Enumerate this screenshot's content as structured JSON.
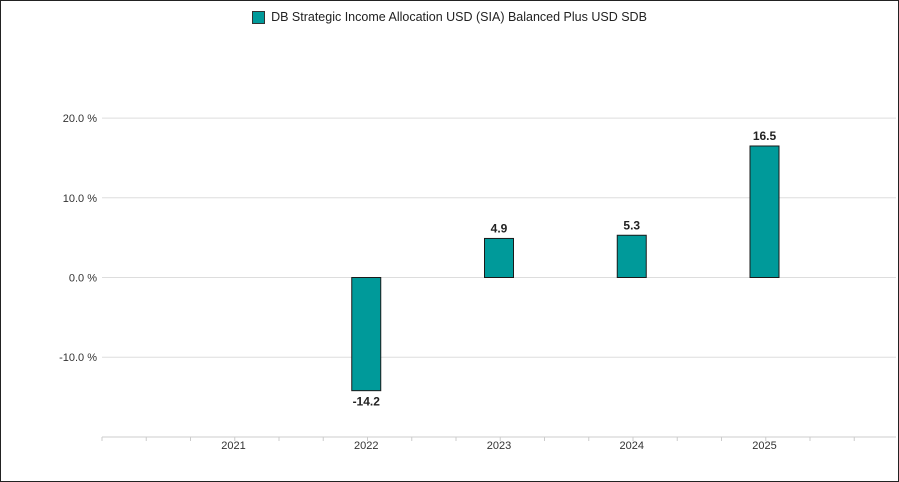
{
  "chart_data": {
    "type": "bar",
    "categories": [
      "2021",
      "2022",
      "2023",
      "2024",
      "2025"
    ],
    "series": [
      {
        "name": "DB Strategic Income Allocation USD (SIA) Balanced Plus USD SDB",
        "values": [
          null,
          -14.2,
          4.9,
          5.3,
          16.5
        ],
        "labels": [
          "",
          "-14.2",
          "4.9",
          "5.3",
          "16.5"
        ],
        "color": "#009a9a"
      }
    ],
    "yticks": [
      -10,
      0,
      10,
      20
    ],
    "ytick_labels": [
      "-10.0 %",
      "0.0 %",
      "10.0 %",
      "20.0 %"
    ],
    "ylim": [
      -20,
      40
    ],
    "legend_position": "top-center",
    "grid": true
  }
}
